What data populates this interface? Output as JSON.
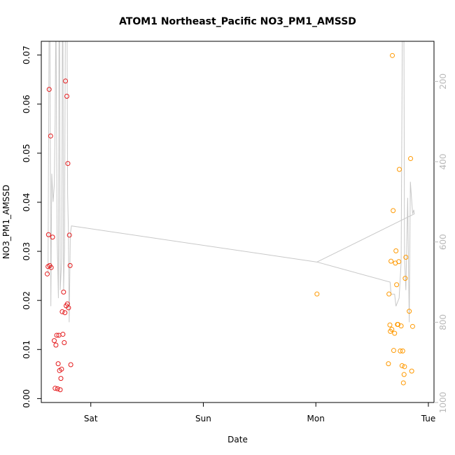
{
  "chart_data": {
    "type": "scatter",
    "title": "ATOM1 Northeast_Pacific NO3_PM1_AMSSD",
    "xlabel": "Date",
    "ylabel": "NO3_PM1_AMSSD",
    "x_ticks": [
      "Sat",
      "Sun",
      "Mon",
      "Tue"
    ],
    "x_ticks_pos_days": [
      1,
      2,
      3,
      4
    ],
    "x_range_days": [
      0.56,
      4.05
    ],
    "ylim": [
      -0.0008,
      0.0728
    ],
    "y_ticks": [
      0.0,
      0.01,
      0.02,
      0.03,
      0.04,
      0.05,
      0.06,
      0.07
    ],
    "y2_range": [
      100,
      1000
    ],
    "y2_ticks": [
      200,
      400,
      600,
      800,
      1000
    ],
    "series": [
      {
        "color": "#e41a1c",
        "points": [
          [
            0.613,
            0.0254
          ],
          [
            0.62,
            0.0269
          ],
          [
            0.624,
            0.0334
          ],
          [
            0.63,
            0.063
          ],
          [
            0.635,
            0.0271
          ],
          [
            0.643,
            0.0535
          ],
          [
            0.648,
            0.0267
          ],
          [
            0.66,
            0.0329
          ],
          [
            0.675,
            0.0118
          ],
          [
            0.683,
            0.0021
          ],
          [
            0.69,
            0.0109
          ],
          [
            0.697,
            0.0129
          ],
          [
            0.704,
            0.002
          ],
          [
            0.71,
            0.0071
          ],
          [
            0.716,
            0.0129
          ],
          [
            0.722,
            0.0057
          ],
          [
            0.728,
            0.0018
          ],
          [
            0.734,
            0.0041
          ],
          [
            0.74,
            0.006
          ],
          [
            0.746,
            0.0177
          ],
          [
            0.752,
            0.0131
          ],
          [
            0.758,
            0.0217
          ],
          [
            0.764,
            0.0114
          ],
          [
            0.77,
            0.0175
          ],
          [
            0.775,
            0.0647
          ],
          [
            0.781,
            0.0189
          ],
          [
            0.787,
            0.0616
          ],
          [
            0.792,
            0.0193
          ],
          [
            0.796,
            0.0479
          ],
          [
            0.802,
            0.0185
          ],
          [
            0.81,
            0.0333
          ],
          [
            0.816,
            0.0271
          ],
          [
            0.822,
            0.0069
          ]
        ]
      },
      {
        "color": "#ff9900",
        "points": [
          [
            3.01,
            0.0213
          ],
          [
            3.645,
            0.0071
          ],
          [
            3.65,
            0.0213
          ],
          [
            3.658,
            0.015
          ],
          [
            3.662,
            0.0137
          ],
          [
            3.668,
            0.028
          ],
          [
            3.675,
            0.0141
          ],
          [
            3.68,
            0.0699
          ],
          [
            3.687,
            0.0383
          ],
          [
            3.692,
            0.0098
          ],
          [
            3.7,
            0.0133
          ],
          [
            3.707,
            0.0276
          ],
          [
            3.712,
            0.0301
          ],
          [
            3.718,
            0.0232
          ],
          [
            3.725,
            0.0151
          ],
          [
            3.73,
            0.0151
          ],
          [
            3.737,
            0.0279
          ],
          [
            3.742,
            0.0467
          ],
          [
            3.75,
            0.0097
          ],
          [
            3.758,
            0.0148
          ],
          [
            3.766,
            0.0067
          ],
          [
            3.772,
            0.0097
          ],
          [
            3.778,
            0.0032
          ],
          [
            3.784,
            0.0049
          ],
          [
            3.788,
            0.0065
          ],
          [
            3.794,
            0.0245
          ],
          [
            3.8,
            0.0288
          ],
          [
            3.83,
            0.0178
          ],
          [
            3.842,
            0.0489
          ],
          [
            3.852,
            0.0056
          ],
          [
            3.86,
            0.0147
          ]
        ]
      }
    ],
    "secondary_series": {
      "color": "#c8c8c8",
      "type": "line",
      "points": [
        [
          0.62,
          680
        ],
        [
          0.633,
          -200
        ],
        [
          0.645,
          760
        ],
        [
          0.653,
          430
        ],
        [
          0.665,
          500
        ],
        [
          0.675,
          460
        ],
        [
          0.683,
          300
        ],
        [
          0.69,
          0
        ],
        [
          0.7,
          580
        ],
        [
          0.712,
          740
        ],
        [
          0.72,
          -200
        ],
        [
          0.728,
          720
        ],
        [
          0.742,
          640
        ],
        [
          0.75,
          -200
        ],
        [
          0.758,
          720
        ],
        [
          0.766,
          620
        ],
        [
          0.775,
          0
        ],
        [
          0.786,
          -200
        ],
        [
          0.794,
          480
        ],
        [
          0.8,
          560
        ],
        [
          0.808,
          800
        ],
        [
          0.818,
          580
        ],
        [
          0.828,
          560
        ],
        [
          3.01,
          650
        ],
        [
          3.66,
          700
        ],
        [
          3.668,
          730
        ],
        [
          3.685,
          730
        ],
        [
          3.7,
          730
        ],
        [
          3.712,
          760
        ],
        [
          3.74,
          740
        ],
        [
          3.758,
          650
        ],
        [
          3.77,
          0
        ],
        [
          3.78,
          -200
        ],
        [
          3.788,
          640
        ],
        [
          3.8,
          720
        ],
        [
          3.816,
          490
        ],
        [
          3.83,
          800
        ],
        [
          3.84,
          450
        ],
        [
          3.86,
          530
        ],
        [
          3.87,
          520
        ],
        [
          3.875,
          530
        ],
        [
          3.01,
          650
        ]
      ]
    },
    "grid": false,
    "legend": "none"
  }
}
